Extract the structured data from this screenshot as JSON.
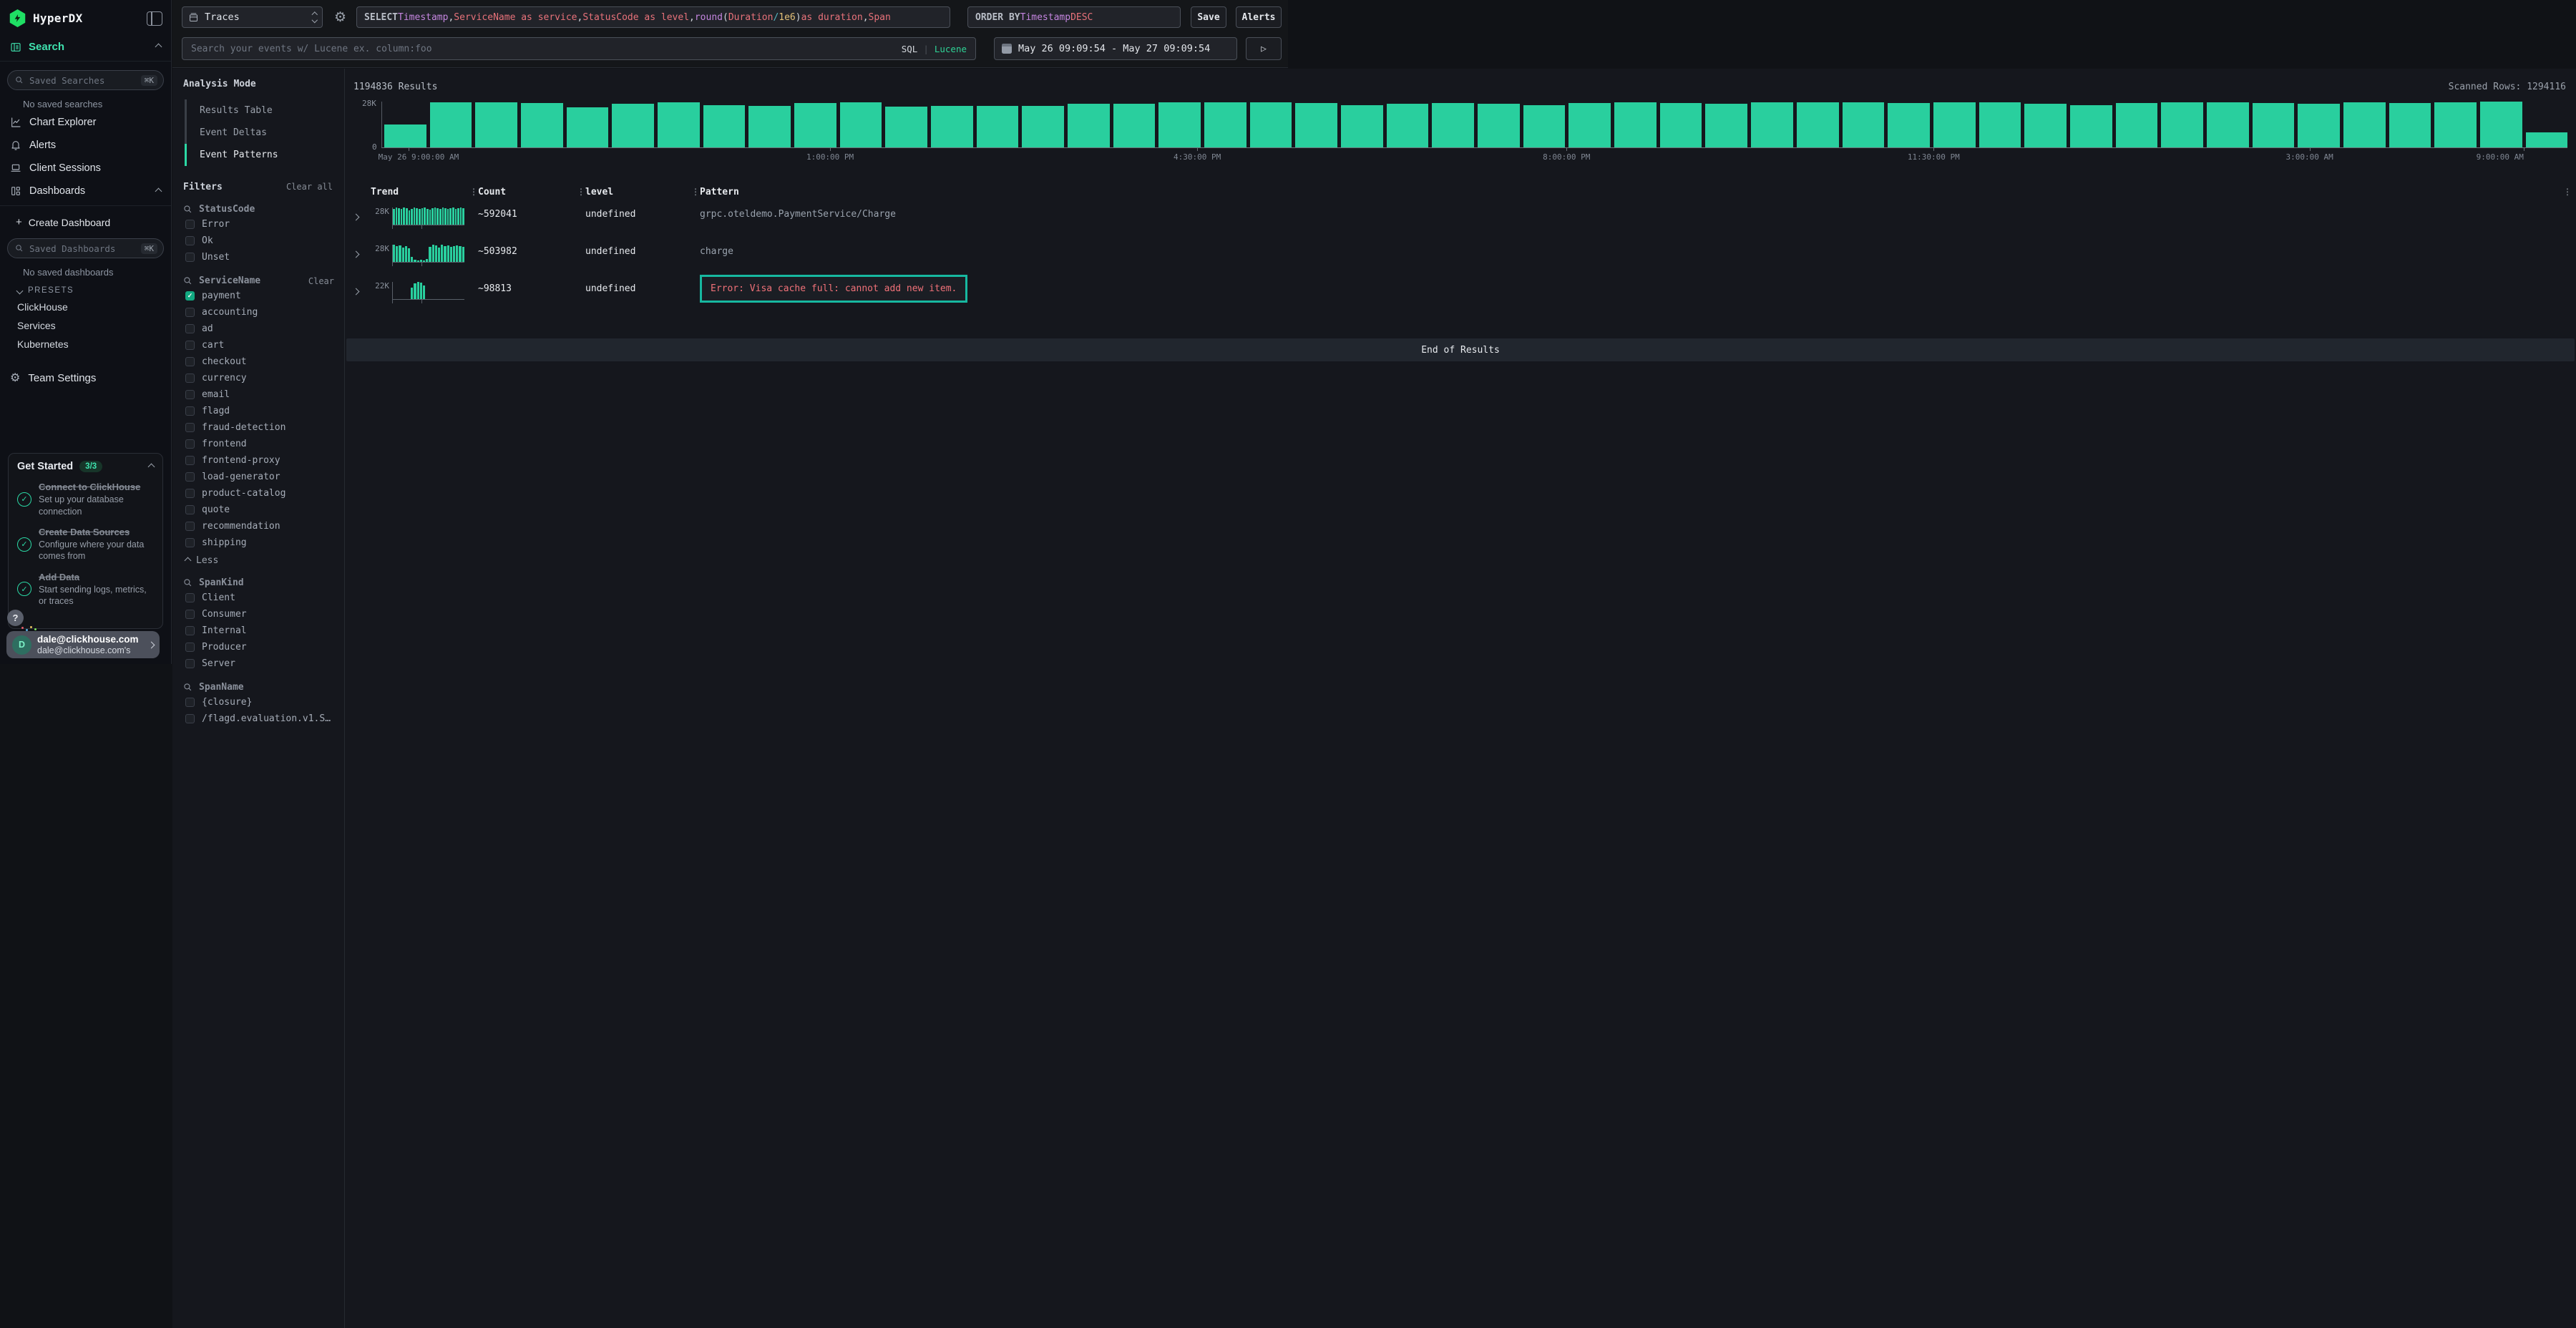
{
  "sidebar": {
    "brand": "HyperDX",
    "nav_search": "Search",
    "saved_searches_placeholder": "Saved Searches",
    "shortcut": "⌘K",
    "no_saved_searches": "No saved searches",
    "items": [
      {
        "label": "Chart Explorer"
      },
      {
        "label": "Alerts"
      },
      {
        "label": "Client Sessions"
      },
      {
        "label": "Dashboards"
      }
    ],
    "plus": "+",
    "create_dashboard": "Create Dashboard",
    "saved_dashboards_placeholder": "Saved Dashboards",
    "no_saved_dashboards": "No saved dashboards",
    "presets_label": "PRESETS",
    "presets": [
      {
        "label": "ClickHouse"
      },
      {
        "label": "Services"
      },
      {
        "label": "Kubernetes"
      }
    ],
    "team_settings": "Team Settings",
    "get_started": {
      "title": "Get Started",
      "badge": "3/3",
      "steps": [
        {
          "title": "Connect to ClickHouse",
          "desc": "Set up your database connection"
        },
        {
          "title": "Create Data Sources",
          "desc": "Configure where your data comes from"
        },
        {
          "title": "Add Data",
          "desc": "Start sending logs, metrics, or traces"
        }
      ]
    },
    "help_label": "?",
    "user": {
      "initial": "D",
      "title": "dale@clickhouse.com",
      "subtitle": "dale@clickhouse.com's"
    }
  },
  "topbar": {
    "source_label": "Traces",
    "query_tokens": [
      [
        "kw",
        "SELECT "
      ],
      [
        "id",
        "Timestamp"
      ],
      [
        "pl",
        ", "
      ],
      [
        "str",
        "ServiceName as service"
      ],
      [
        "pl",
        ", "
      ],
      [
        "str",
        "StatusCode as level"
      ],
      [
        "pl",
        ", "
      ],
      [
        "fn",
        "round"
      ],
      [
        "pl",
        "("
      ],
      [
        "str",
        "Duration"
      ],
      [
        "op",
        " / "
      ],
      [
        "num",
        "1e6"
      ],
      [
        "pl",
        ")"
      ],
      [
        "str",
        " as duration"
      ],
      [
        "pl",
        ", "
      ],
      [
        "str",
        "Span"
      ]
    ],
    "order_tokens": [
      [
        "kw",
        "ORDER BY "
      ],
      [
        "id",
        "Timestamp "
      ],
      [
        "str",
        "DESC"
      ]
    ],
    "save_label": "Save",
    "alerts_label": "Alerts",
    "search_placeholder": "Search your events w/ Lucene ex. column:foo",
    "mode_sql": "SQL",
    "mode_divider": "|",
    "mode_lucene": "Lucene",
    "date_range": "May 26 09:09:54 - May 27 09:09:54",
    "run_glyph": "▷"
  },
  "panel": {
    "analysis_title": "Analysis Mode",
    "modes": [
      {
        "label": "Results Table",
        "active": false
      },
      {
        "label": "Event Deltas",
        "active": false
      },
      {
        "label": "Event Patterns",
        "active": true
      }
    ],
    "filters_title": "Filters",
    "clear_all": "Clear all",
    "groups": [
      {
        "name": "StatusCode",
        "options": [
          {
            "label": "Error"
          },
          {
            "label": "Ok"
          },
          {
            "label": "Unset"
          }
        ]
      },
      {
        "name": "ServiceName",
        "clear": "Clear",
        "less": "Less",
        "options": [
          {
            "label": "payment",
            "checked": true
          },
          {
            "label": "accounting"
          },
          {
            "label": "ad"
          },
          {
            "label": "cart"
          },
          {
            "label": "checkout"
          },
          {
            "label": "currency"
          },
          {
            "label": "email"
          },
          {
            "label": "flagd"
          },
          {
            "label": "fraud-detection"
          },
          {
            "label": "frontend"
          },
          {
            "label": "frontend-proxy"
          },
          {
            "label": "load-generator"
          },
          {
            "label": "product-catalog"
          },
          {
            "label": "quote"
          },
          {
            "label": "recommendation"
          },
          {
            "label": "shipping"
          }
        ]
      },
      {
        "name": "SpanKind",
        "options": [
          {
            "label": "Client"
          },
          {
            "label": "Consumer"
          },
          {
            "label": "Internal"
          },
          {
            "label": "Producer"
          },
          {
            "label": "Server"
          }
        ]
      },
      {
        "name": "SpanName",
        "options": [
          {
            "label": "{closure}"
          },
          {
            "label": "/flagd.evaluation.v1.Se…"
          }
        ]
      }
    ]
  },
  "results": {
    "count_label": "1194836 Results",
    "scanned_label": "Scanned Rows: 1294116",
    "histogram": {
      "type": "bar",
      "ymax_label": "28K",
      "ymin_label": "0",
      "unit_max": 28,
      "values_k": [
        14,
        27.5,
        27.5,
        27,
        24.5,
        26.5,
        27.5,
        26,
        25.5,
        27,
        27.5,
        25,
        25.5,
        25.5,
        25.5,
        26.5,
        26.5,
        27.5,
        27.5,
        27.5,
        27,
        26,
        26.5,
        27,
        26.5,
        26,
        27,
        27.5,
        27,
        26.5,
        27.5,
        27.5,
        27.5,
        27,
        27.5,
        27.5,
        26.5,
        26,
        27,
        27.5,
        27.5,
        27,
        26.5,
        27.5,
        27,
        27.5,
        28,
        9
      ],
      "ticks": [
        {
          "label": "May 26 9:00:00 AM",
          "pos": 0.012
        },
        {
          "label": "1:00:00 PM",
          "pos": 0.205
        },
        {
          "label": "4:30:00 PM",
          "pos": 0.373
        },
        {
          "label": "8:00:00 PM",
          "pos": 0.542
        },
        {
          "label": "11:30:00 PM",
          "pos": 0.71
        },
        {
          "label": "3:00:00 AM",
          "pos": 0.882
        },
        {
          "label": "9:00:00 AM",
          "pos": 0.98
        }
      ]
    },
    "table": {
      "headers": [
        "Trend",
        "Count",
        "level",
        "Pattern"
      ],
      "rows": [
        {
          "trend_label": "28K",
          "count": "~592041",
          "level": "undefined",
          "pattern": "grpc.oteldemo.PaymentService/Charge",
          "highlight": false,
          "spark": [
            0.92,
            1,
            0.96,
            0.9,
            1,
            0.95,
            0.85,
            0.92,
            1,
            0.95,
            0.9,
            0.96,
            1,
            0.9,
            0.86,
            0.95,
            1,
            0.95,
            0.9,
            1,
            0.95,
            0.9,
            0.96,
            1,
            0.92,
            0.95,
            1,
            0.95
          ]
        },
        {
          "trend_label": "28K",
          "count": "~503982",
          "level": "undefined",
          "pattern": "charge",
          "highlight": false,
          "spark": [
            1,
            0.9,
            0.95,
            0.85,
            0.92,
            0.8,
            0.28,
            0.12,
            0.1,
            0.14,
            0.1,
            0.16,
            0.88,
            1,
            0.95,
            0.85,
            1,
            0.9,
            0.95,
            0.86,
            0.92,
            0.95,
            0.9,
            0.86
          ]
        },
        {
          "trend_label": "22K",
          "count": "~98813",
          "level": "undefined",
          "pattern": "Error: Visa cache full: cannot add new item.",
          "highlight": true,
          "spark": [
            0,
            0,
            0,
            0,
            0,
            0,
            0.65,
            0.9,
            1,
            0.95,
            0.78,
            0,
            0,
            0,
            0,
            0,
            0,
            0,
            0,
            0,
            0,
            0,
            0,
            0
          ]
        }
      ]
    },
    "end_label": "End of Results"
  }
}
